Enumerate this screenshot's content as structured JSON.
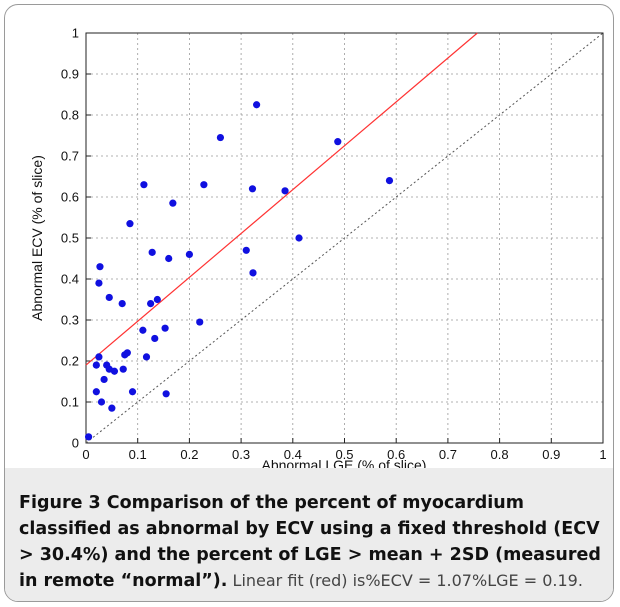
{
  "chart_data": {
    "type": "scatter",
    "xlabel": "Abnormal LGE (% of slice)",
    "ylabel": "Abnormal ECV (% of slice)",
    "xlim": [
      0,
      1
    ],
    "ylim": [
      0,
      1
    ],
    "xticks": [
      "0",
      "0.1",
      "0.2",
      "0.3",
      "0.4",
      "0.5",
      "0.6",
      "0.7",
      "0.8",
      "0.9",
      "1"
    ],
    "yticks": [
      "0",
      "0.1",
      "0.2",
      "0.3",
      "0.4",
      "0.5",
      "0.6",
      "0.7",
      "0.8",
      "0.9",
      "1"
    ],
    "grid": true,
    "points": [
      {
        "x": 0.005,
        "y": 0.015
      },
      {
        "x": 0.02,
        "y": 0.125
      },
      {
        "x": 0.02,
        "y": 0.19
      },
      {
        "x": 0.025,
        "y": 0.21
      },
      {
        "x": 0.025,
        "y": 0.39
      },
      {
        "x": 0.027,
        "y": 0.43
      },
      {
        "x": 0.03,
        "y": 0.1
      },
      {
        "x": 0.035,
        "y": 0.155
      },
      {
        "x": 0.04,
        "y": 0.19
      },
      {
        "x": 0.045,
        "y": 0.18
      },
      {
        "x": 0.045,
        "y": 0.355
      },
      {
        "x": 0.05,
        "y": 0.085
      },
      {
        "x": 0.055,
        "y": 0.175
      },
      {
        "x": 0.07,
        "y": 0.34
      },
      {
        "x": 0.072,
        "y": 0.18
      },
      {
        "x": 0.075,
        "y": 0.215
      },
      {
        "x": 0.08,
        "y": 0.22
      },
      {
        "x": 0.085,
        "y": 0.535
      },
      {
        "x": 0.09,
        "y": 0.125
      },
      {
        "x": 0.11,
        "y": 0.275
      },
      {
        "x": 0.112,
        "y": 0.63
      },
      {
        "x": 0.117,
        "y": 0.21
      },
      {
        "x": 0.125,
        "y": 0.34
      },
      {
        "x": 0.128,
        "y": 0.465
      },
      {
        "x": 0.133,
        "y": 0.255
      },
      {
        "x": 0.138,
        "y": 0.35
      },
      {
        "x": 0.153,
        "y": 0.28
      },
      {
        "x": 0.155,
        "y": 0.12
      },
      {
        "x": 0.16,
        "y": 0.45
      },
      {
        "x": 0.168,
        "y": 0.585
      },
      {
        "x": 0.2,
        "y": 0.46
      },
      {
        "x": 0.22,
        "y": 0.295
      },
      {
        "x": 0.228,
        "y": 0.63
      },
      {
        "x": 0.26,
        "y": 0.745
      },
      {
        "x": 0.31,
        "y": 0.47
      },
      {
        "x": 0.322,
        "y": 0.62
      },
      {
        "x": 0.323,
        "y": 0.415
      },
      {
        "x": 0.33,
        "y": 0.825
      },
      {
        "x": 0.385,
        "y": 0.615
      },
      {
        "x": 0.412,
        "y": 0.5
      },
      {
        "x": 0.487,
        "y": 0.735
      },
      {
        "x": 0.587,
        "y": 0.64
      }
    ],
    "fit_line": {
      "slope": 1.07,
      "intercept": 0.19,
      "color": "#ff3333"
    },
    "identity_line": {
      "color": "#555555",
      "style": "dotted"
    },
    "point_color": "#1010e0"
  },
  "caption": {
    "bold": "Figure 3 Comparison of the percent of myocardium classified as abnormal by ECV using a fixed threshold (ECV > 30.4%) and the percent of LGE > mean + 2SD (measured in remote “normal”).",
    "plain": " Linear fit (red) is%ECV = 1.07%LGE = 0.19."
  }
}
